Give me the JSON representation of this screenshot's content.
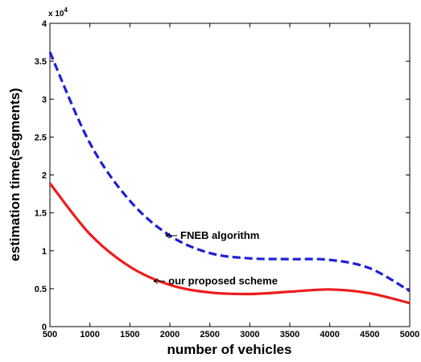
{
  "chart_data": {
    "type": "line",
    "xlabel": "number of vehicles",
    "ylabel": "estimation time(segments)",
    "y_multiplier_label": "x 10",
    "y_multiplier_exponent": "4",
    "xlim": [
      500,
      5000
    ],
    "ylim": [
      0,
      4
    ],
    "grid": false,
    "xticks": [
      "500",
      "1000",
      "1500",
      "2000",
      "2500",
      "3000",
      "3500",
      "4000",
      "4500",
      "5000"
    ],
    "yticks": [
      "0",
      "0.5",
      "1",
      "1.5",
      "2",
      "2.5",
      "3",
      "3.5",
      "4"
    ],
    "x": [
      500,
      1000,
      1500,
      2000,
      2500,
      3000,
      3500,
      4000,
      4500,
      5000
    ],
    "series": [
      {
        "name": "FNEB algorithm",
        "style": "dashed",
        "color": "#1f1fd6",
        "values": [
          3.62,
          2.42,
          1.66,
          1.2,
          0.97,
          0.9,
          0.89,
          0.88,
          0.77,
          0.47
        ]
      },
      {
        "name": "our proposed scheme",
        "style": "solid",
        "color": "#ee1c1c",
        "values": [
          1.89,
          1.22,
          0.79,
          0.55,
          0.45,
          0.43,
          0.46,
          0.49,
          0.44,
          0.31
        ]
      }
    ],
    "annotations": [
      {
        "text": "FNEB algorithm",
        "series": "FNEB algorithm",
        "x": 1950,
        "y": 1.2
      },
      {
        "text": "our proposed scheme",
        "series": "our proposed scheme",
        "x": 1800,
        "y": 0.6
      }
    ]
  }
}
